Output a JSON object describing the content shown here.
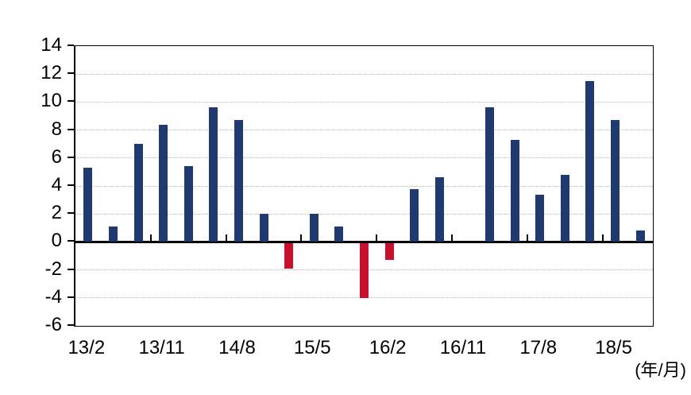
{
  "chart_data": {
    "type": "bar",
    "title": "",
    "categories": [
      "13/2",
      "13/5",
      "13/8",
      "13/11",
      "14/2",
      "14/5",
      "14/8",
      "14/11",
      "15/2",
      "15/5",
      "15/8",
      "15/11",
      "16/2",
      "16/5",
      "16/8",
      "16/11",
      "17/2",
      "17/5",
      "17/8",
      "17/11",
      "18/2",
      "18/5",
      "18/8"
    ],
    "values": [
      5.3,
      1.1,
      7.0,
      8.4,
      5.4,
      9.6,
      8.7,
      2.0,
      -1.8,
      2.0,
      1.1,
      -3.9,
      -1.2,
      3.8,
      4.6,
      0,
      9.6,
      7.3,
      3.4,
      4.8,
      11.5,
      8.7,
      0.8
    ],
    "x_tick_labels": [
      "13/2",
      "13/11",
      "14/8",
      "15/5",
      "16/2",
      "16/11",
      "17/8",
      "18/5"
    ],
    "x_tick_every": 3,
    "y_tick_labels": [
      "14",
      "12",
      "10",
      "8",
      "6",
      "4",
      "2",
      "0",
      "-2",
      "-4",
      "-6"
    ],
    "ylim": [
      -6,
      14
    ],
    "ytick_step": 2,
    "x_axis_unit": "(年/月)",
    "legend": "none",
    "grid": "horizontal-dotted",
    "colors": {
      "bar_positive": "#1f3a6e",
      "bar_negative": "#c8102d",
      "gridline": "#b8b8b8",
      "axis": "#000000",
      "background": "#ffffff"
    }
  }
}
